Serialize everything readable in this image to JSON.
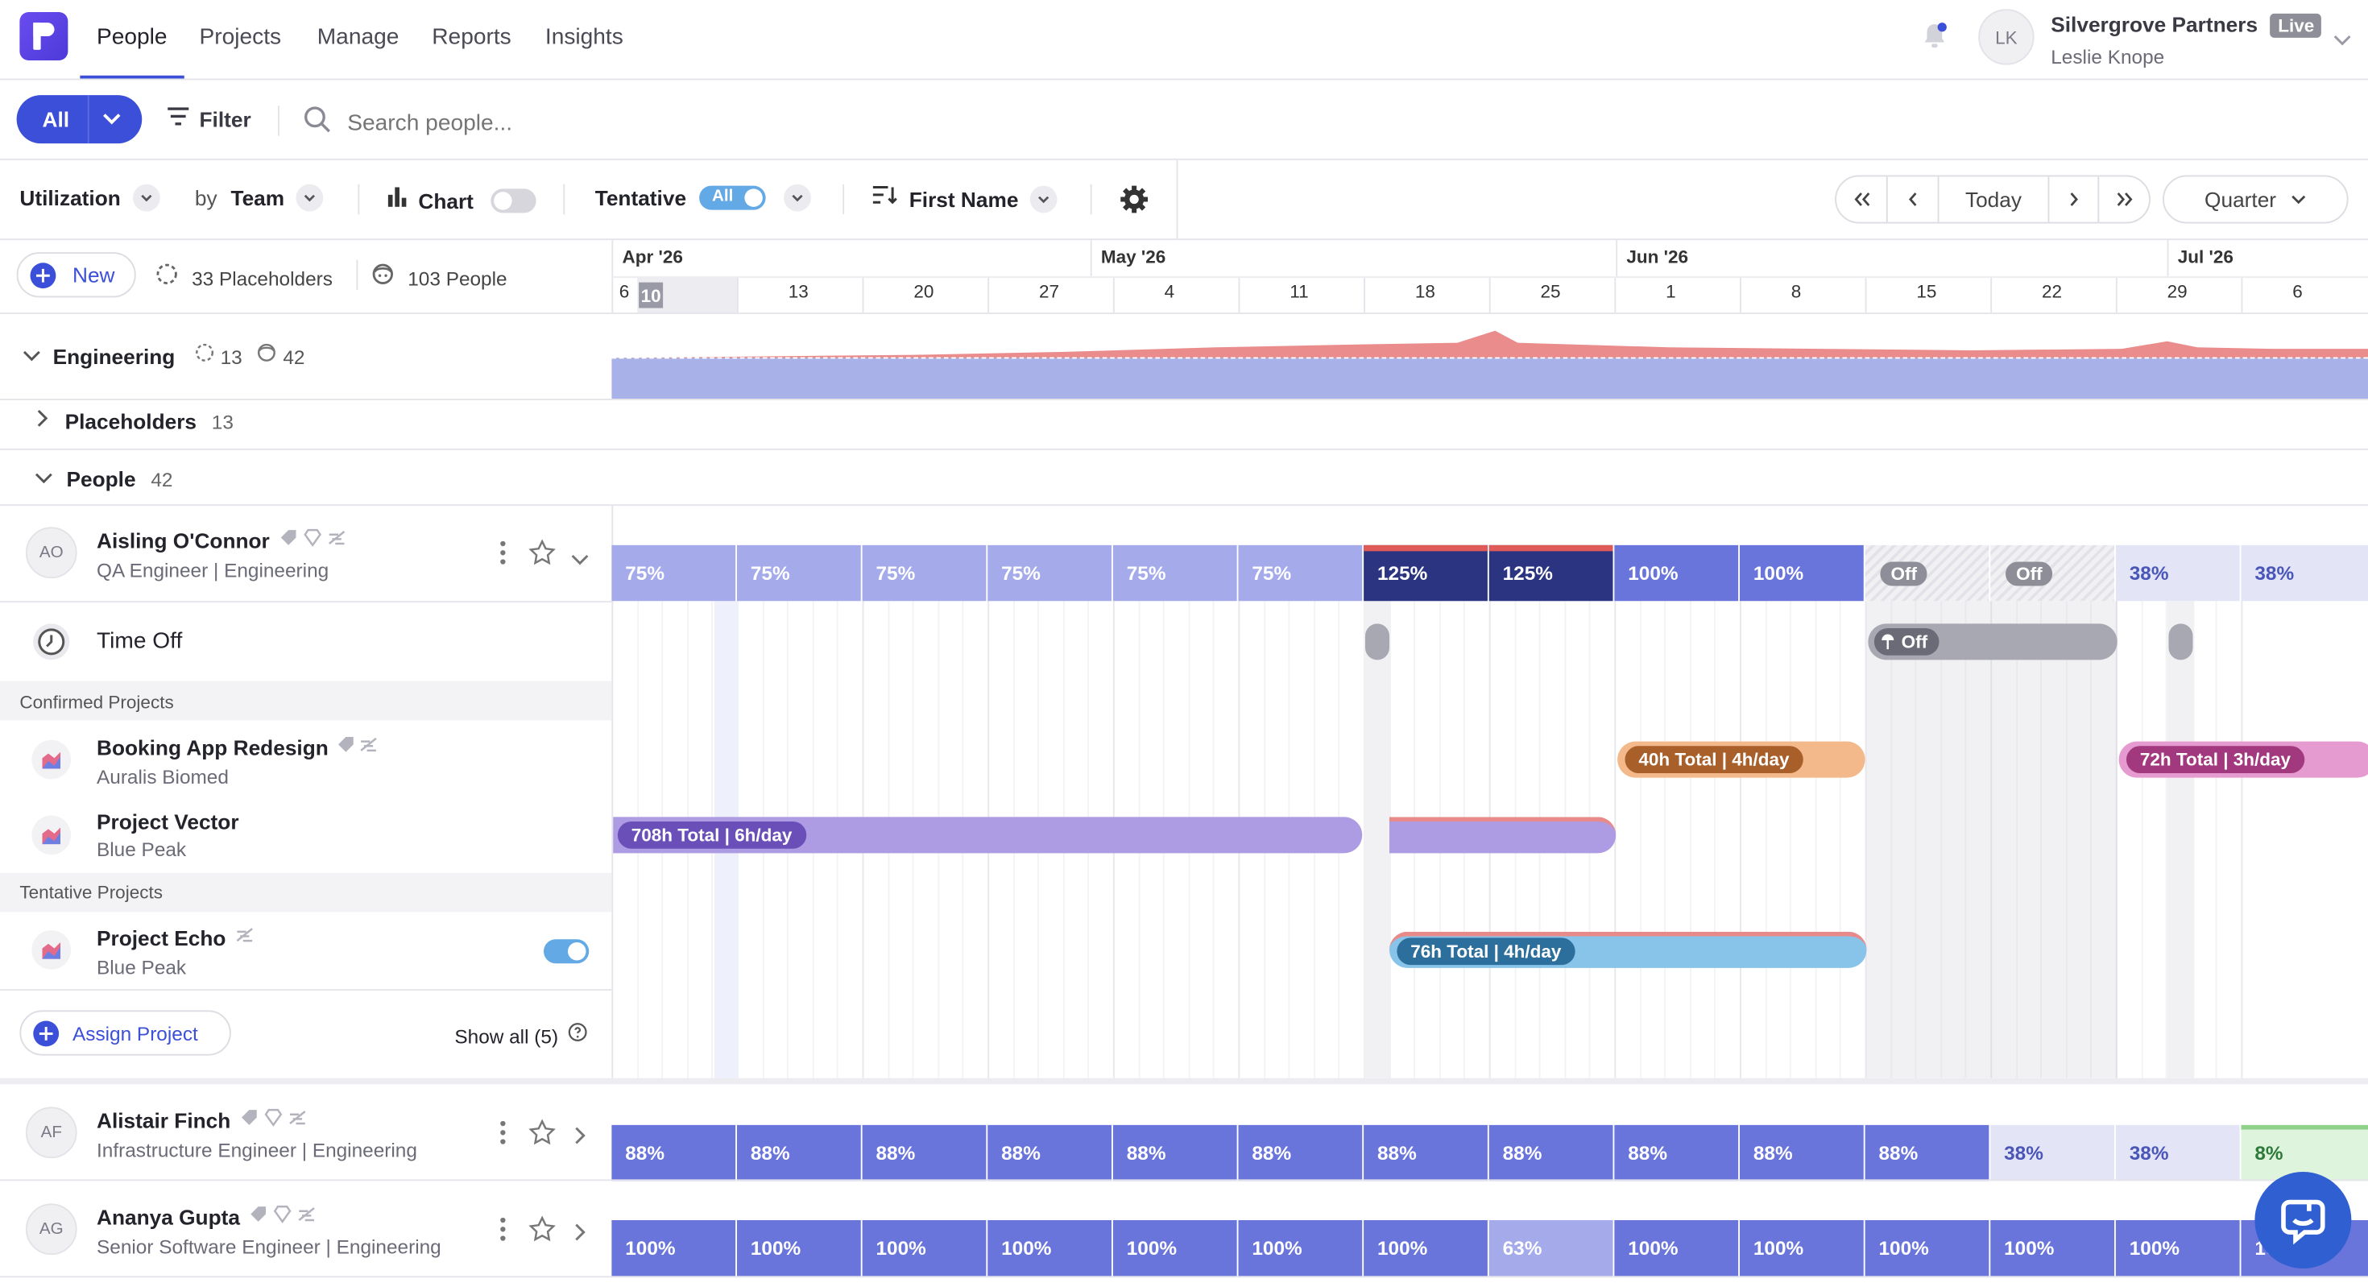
{
  "nav": {
    "logo": "r-logo",
    "tabs": [
      "People",
      "Projects",
      "Manage",
      "Reports",
      "Insights"
    ],
    "active_tab": "People",
    "account_name": "Silvergrove Partners",
    "account_badge": "Live",
    "user_name": "Leslie Knope",
    "user_initials": "LK"
  },
  "filterbar": {
    "all_label": "All",
    "filter_label": "Filter",
    "search_placeholder": "Search people..."
  },
  "toolbar": {
    "utilization_label": "Utilization",
    "by_label": "by",
    "team_label": "Team",
    "chart_label": "Chart",
    "chart_toggle_on": false,
    "tentative_label": "Tentative",
    "tentative_toggle_label": "All",
    "sort_label": "First Name",
    "today_label": "Today",
    "range_label": "Quarter"
  },
  "summary": {
    "new_label": "New",
    "placeholders_text": "33 Placeholders",
    "people_text": "103 People"
  },
  "timeline": {
    "months": [
      "Apr '26",
      "May '26",
      "Jun '26",
      "Jul '26"
    ],
    "weeks": [
      "6",
      "13",
      "20",
      "27",
      "4",
      "11",
      "18",
      "25",
      "1",
      "8",
      "15",
      "22",
      "29",
      "6"
    ],
    "today": "10"
  },
  "engineering": {
    "label": "Engineering",
    "placeholder_count": "13",
    "people_count": "42",
    "placeholders_label": "Placeholders",
    "placeholders_count": "13",
    "people_label": "People",
    "people_group_count": "42"
  },
  "person1": {
    "initials": "AO",
    "name": "Aisling O'Connor",
    "role": "QA Engineer | Engineering",
    "utilization": [
      "75%",
      "75%",
      "75%",
      "75%",
      "75%",
      "75%",
      "125%",
      "125%",
      "100%",
      "100%",
      "Off",
      "Off",
      "38%",
      "38%"
    ],
    "time_off_label": "Time Off",
    "time_off_bar_label": "Off",
    "confirmed_label": "Confirmed Projects",
    "tentative_label": "Tentative Projects",
    "projects": [
      {
        "name": "Booking App Redesign",
        "client": "Auralis Biomed",
        "bar1": "40h Total | 4h/day",
        "bar2": "72h Total | 3h/day"
      },
      {
        "name": "Project Vector",
        "client": "Blue Peak",
        "bar1": "708h Total | 6h/day"
      },
      {
        "name": "Project Echo",
        "client": "Blue Peak",
        "bar1": "76h Total | 4h/day",
        "toggle_on": true
      }
    ],
    "assign_label": "Assign Project",
    "show_all_label": "Show all (5)"
  },
  "person2": {
    "initials": "AF",
    "name": "Alistair Finch",
    "role": "Infrastructure Engineer | Engineering",
    "utilization": [
      "88%",
      "88%",
      "88%",
      "88%",
      "88%",
      "88%",
      "88%",
      "88%",
      "88%",
      "88%",
      "88%",
      "38%",
      "38%",
      "8%"
    ]
  },
  "person3": {
    "initials": "AG",
    "name": "Ananya Gupta",
    "role": "Senior Software Engineer | Engineering",
    "utilization": [
      "100%",
      "100%",
      "100%",
      "100%",
      "100%",
      "100%",
      "100%",
      "63%",
      "100%",
      "100%",
      "100%",
      "100%",
      "100%",
      "100%"
    ]
  },
  "colors": {
    "accent": "#3b4fd8",
    "util_75": "#a4aaea",
    "util_over": "#2a3480",
    "util_100": "#6a75db",
    "util_low": "#e3e5f7",
    "util_green": "#dff4dd",
    "bar_orange": "#f3b98a",
    "bar_purple": "#ad9ce3",
    "bar_blue": "#88c3ea",
    "bar_pink": "#e59bd0"
  }
}
